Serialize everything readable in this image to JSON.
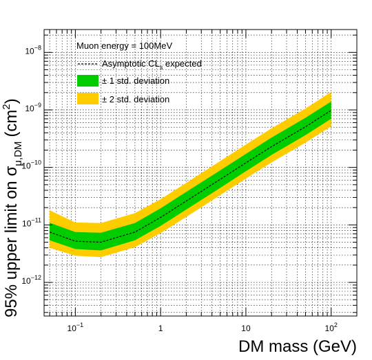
{
  "chart_data": {
    "type": "area",
    "xscale": "log",
    "yscale": "log",
    "xlim": [
      0.043,
      200
    ],
    "ylim": [
      2.6e-13,
      2.5e-08
    ],
    "grid": true,
    "xlabel": "DM mass (GeV)",
    "ylabel": {
      "prefix": "95% upper limit on σ",
      "subscript": "μ,DM",
      "units": "(cm",
      "units_sup": "2",
      "units_close": ")"
    },
    "x_ticks": [
      {
        "value": 0.1,
        "base": "10",
        "exp": "−1"
      },
      {
        "value": 1,
        "base": "1",
        "exp": ""
      },
      {
        "value": 10,
        "base": "10",
        "exp": ""
      },
      {
        "value": 100,
        "base": "10",
        "exp": "2"
      }
    ],
    "y_ticks": [
      {
        "value": 1e-12,
        "base": "10",
        "exp": "−12"
      },
      {
        "value": 1e-11,
        "base": "10",
        "exp": "−11"
      },
      {
        "value": 1e-10,
        "base": "10",
        "exp": "−10"
      },
      {
        "value": 1e-09,
        "base": "10",
        "exp": "−9"
      },
      {
        "value": 1e-08,
        "base": "10",
        "exp": "−8"
      }
    ],
    "x": [
      0.05,
      0.1,
      0.2,
      0.5,
      1,
      2,
      5,
      10,
      20,
      50,
      100
    ],
    "series": [
      {
        "name": "Asymptotic CL_s expected",
        "role": "expected",
        "values": [
          7.5e-12,
          5.2e-12,
          5e-12,
          7.5e-12,
          1.35e-11,
          2.6e-11,
          6.2e-11,
          1.2e-10,
          2.3e-10,
          5.1e-10,
          9.8e-10
        ]
      },
      {
        "name": "± 1 std. deviation",
        "role": "band1",
        "lower": [
          5.4e-12,
          3.8e-12,
          3.6e-12,
          5.4e-12,
          9.6e-12,
          1.85e-11,
          4.4e-11,
          8.6e-11,
          1.65e-10,
          3.65e-10,
          7e-10
        ],
        "upper": [
          1.09e-11,
          7.5e-12,
          7.3e-12,
          1.08e-11,
          1.95e-11,
          3.75e-11,
          8.9e-11,
          1.72e-10,
          3.3e-10,
          7.3e-10,
          1.4e-09
        ]
      },
      {
        "name": "± 2 std. deviation",
        "role": "band2",
        "lower": [
          4e-12,
          2.9e-12,
          2.75e-12,
          4.1e-12,
          7.2e-12,
          1.38e-11,
          3.3e-11,
          6.4e-11,
          1.22e-10,
          2.7e-10,
          5.2e-10
        ],
        "upper": [
          1.8e-11,
          1.1e-11,
          1.08e-11,
          1.6e-11,
          2.8e-11,
          5.4e-11,
          1.29e-10,
          2.5e-10,
          4.8e-10,
          1.06e-09,
          2.05e-09
        ]
      }
    ],
    "legend": {
      "placement": "top-left",
      "header": "Muon energy = 100MeV",
      "expected": {
        "prefix": "Asymptotic CL",
        "sub": "s",
        "suffix": " expected"
      },
      "band1": "± 1 std. deviation",
      "band2": "± 2 std. deviation"
    },
    "colors": {
      "band1": "#00cc00",
      "band2": "#ffcc00",
      "expected": "#000000",
      "grid": "#000000"
    }
  }
}
